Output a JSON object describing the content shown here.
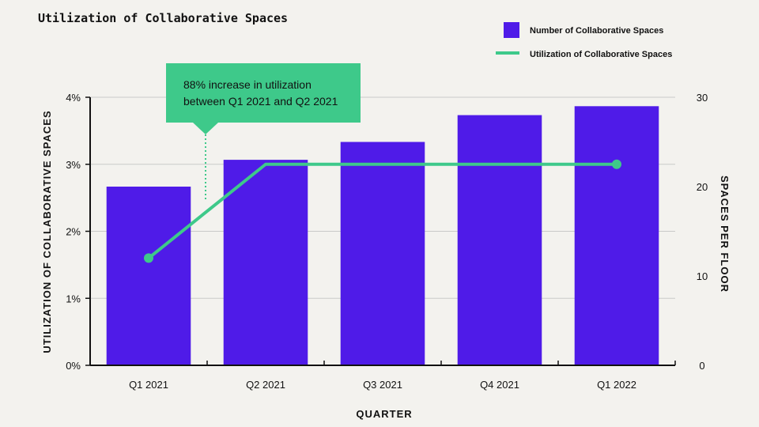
{
  "chart_data": {
    "type": "bar",
    "title": "Utilization of Collaborative Spaces",
    "xlabel": "QUARTER",
    "ylabel_left": "UTILIZATION OF COLLABORATIVE SPACES",
    "ylabel_right": "SPACES PER FLOOR",
    "categories": [
      "Q1 2021",
      "Q2 2021",
      "Q3 2021",
      "Q4 2021",
      "Q1 2022"
    ],
    "series": [
      {
        "name": "Number of Collaborative Spaces",
        "type": "bar",
        "axis": "right",
        "color": "#4f1be8",
        "values": [
          20,
          23,
          25,
          28,
          29
        ]
      },
      {
        "name": "Utilization of Collaborative Spaces",
        "type": "line",
        "axis": "left",
        "color": "#3ec98a",
        "values": [
          1.6,
          3.0,
          3.0,
          3.0,
          3.0
        ],
        "markers_at": [
          0,
          4
        ]
      }
    ],
    "y_left": {
      "min": 0,
      "max": 4,
      "ticks": [
        0,
        1,
        2,
        3,
        4
      ],
      "tick_labels": [
        "0%",
        "1%",
        "2%",
        "3%",
        "4%"
      ]
    },
    "y_right": {
      "min": 0,
      "max": 30,
      "ticks": [
        0,
        10,
        20,
        30
      ],
      "tick_labels": [
        "0",
        "10",
        "20",
        "30"
      ]
    },
    "grid": true,
    "legend_position": "top-right",
    "annotation": {
      "lines": [
        "88% increase in utilization",
        "between Q1 2021 and Q2 2021"
      ],
      "color": "#3ec98a",
      "between_categories": [
        "Q1 2021",
        "Q2 2021"
      ]
    }
  }
}
